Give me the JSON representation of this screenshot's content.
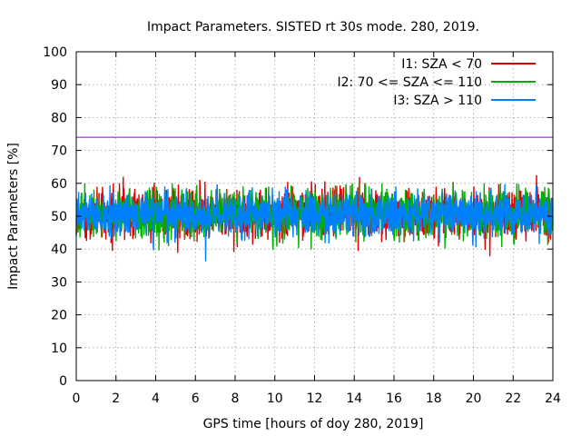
{
  "chart_data": {
    "type": "line",
    "title": "Impact Parameters. SISTED rt 30s mode. 280, 2019.",
    "xlabel": "GPS time [hours of doy 280, 2019]",
    "ylabel": "Impact Parameters [%]",
    "xlim": [
      0,
      24
    ],
    "ylim": [
      0,
      100
    ],
    "x_ticks": [
      0,
      2,
      4,
      6,
      8,
      10,
      12,
      14,
      16,
      18,
      20,
      22,
      24
    ],
    "y_ticks": [
      0,
      10,
      20,
      30,
      40,
      50,
      60,
      70,
      80,
      90,
      100
    ],
    "grid": true,
    "legend_position": "top-right",
    "reference_line": {
      "y": 74,
      "color": "#9400d3"
    },
    "series": [
      {
        "name": "I1: SZA < 70",
        "color": "#e00000",
        "center": 50.5,
        "typical_range": [
          44,
          58
        ],
        "extreme_range": [
          34.5,
          63
        ]
      },
      {
        "name": "I2: 70 <= SZA <= 110",
        "color": "#00b000",
        "center": 50.5,
        "typical_range": [
          44,
          58
        ],
        "extreme_range": [
          37,
          60
        ]
      },
      {
        "name": "I3: SZA > 110",
        "color": "#0080ff",
        "center": 50.5,
        "typical_range": [
          45,
          57
        ],
        "extreme_range": [
          36,
          60
        ]
      }
    ]
  }
}
